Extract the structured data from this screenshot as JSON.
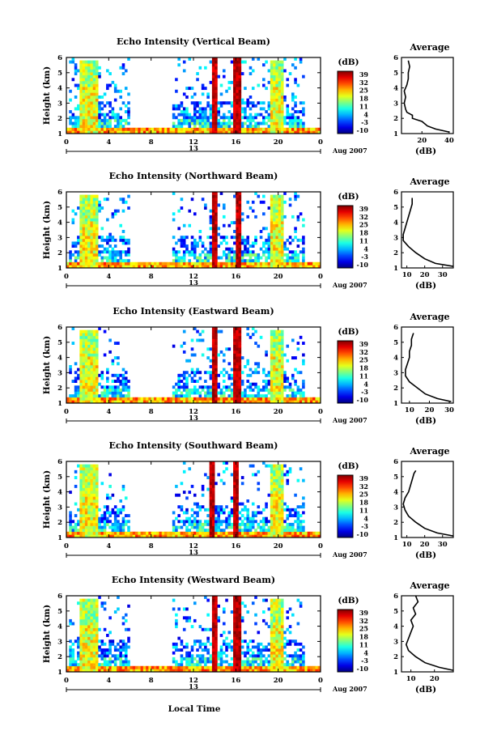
{
  "figure": {
    "bottom_xlabel": "Local Time",
    "cbar_unit": "(dB)",
    "cbar_ticks": [
      "39",
      "32",
      "25",
      "18",
      "11",
      "4",
      "-3",
      "-10"
    ],
    "cbar_min": -10,
    "cbar_max": 39,
    "time_ticks": [
      "0",
      "4",
      "8",
      "12",
      "16",
      "20",
      "0"
    ],
    "date_label": "13",
    "month_label": "Aug 2007",
    "ylabel": "Height (km)",
    "height_ticks": [
      "1",
      "2",
      "3",
      "4",
      "5",
      "6"
    ],
    "avg_title": "Average",
    "avg_xlabel": "(dB)"
  },
  "chart_data": [
    {
      "type": "heatmap",
      "title": "Echo Intensity (Vertical Beam)",
      "ylabel": "Height (km)",
      "xlim": [
        0,
        24
      ],
      "ylim": [
        1,
        6
      ],
      "rain_bands": [
        [
          1.3,
          3.0
        ],
        [
          13.7,
          14.2
        ],
        [
          15.8,
          16.4
        ],
        [
          19.3,
          20.5
        ]
      ],
      "average_profile": {
        "title": "Average",
        "xlabel": "(dB)",
        "xticks": [
          "20",
          "40"
        ],
        "xlim": [
          5,
          43
        ],
        "height": [
          1.1,
          1.3,
          1.5,
          1.8,
          2.0,
          2.2,
          2.4,
          2.6,
          3.0,
          3.4,
          3.8,
          4.2,
          4.6,
          5.0,
          5.4,
          5.8
        ],
        "db": [
          40,
          30,
          24,
          20,
          13,
          13,
          9,
          8,
          7,
          8,
          7,
          9,
          10,
          10,
          11,
          10
        ]
      }
    },
    {
      "type": "heatmap",
      "title": "Echo Intensity (Northward Beam)",
      "ylabel": "Height (km)",
      "xlim": [
        0,
        24
      ],
      "ylim": [
        1,
        6
      ],
      "rain_bands": [
        [
          1.3,
          3.0
        ],
        [
          13.8,
          14.3
        ],
        [
          16.0,
          16.4
        ],
        [
          19.3,
          20.5
        ]
      ],
      "average_profile": {
        "title": "Average",
        "xlabel": "(dB)",
        "xticks": [
          "10",
          "20",
          "30"
        ],
        "xlim": [
          7,
          36
        ],
        "height": [
          1.1,
          1.3,
          1.6,
          2.0,
          2.4,
          2.8,
          3.2,
          3.6,
          4.0,
          4.4,
          4.8,
          5.2,
          5.6
        ],
        "db": [
          36,
          26,
          20,
          15,
          11,
          8,
          8,
          9,
          10,
          11,
          12,
          13,
          13
        ]
      }
    },
    {
      "type": "heatmap",
      "title": "Echo Intensity (Eastward Beam)",
      "ylabel": "Height (km)",
      "xlim": [
        0,
        24
      ],
      "ylim": [
        1,
        6
      ],
      "rain_bands": [
        [
          1.3,
          3.0
        ],
        [
          13.7,
          14.2
        ],
        [
          15.8,
          16.4
        ],
        [
          19.3,
          20.5
        ]
      ],
      "average_profile": {
        "title": "Average",
        "xlabel": "(dB)",
        "xticks": [
          "10",
          "20",
          "30"
        ],
        "xlim": [
          6,
          32
        ],
        "height": [
          1.1,
          1.3,
          1.6,
          2.0,
          2.4,
          2.8,
          3.2,
          3.6,
          4.0,
          4.4,
          4.8,
          5.2,
          5.6
        ],
        "db": [
          31,
          24,
          18,
          14,
          10,
          8,
          8,
          9,
          10,
          10,
          11,
          11,
          12
        ]
      }
    },
    {
      "type": "heatmap",
      "title": "Echo Intensity (Southward Beam)",
      "ylabel": "Height (km)",
      "xlim": [
        0,
        24
      ],
      "ylim": [
        1,
        6
      ],
      "rain_bands": [
        [
          1.3,
          3.0
        ],
        [
          13.4,
          14.0
        ],
        [
          15.7,
          16.3
        ],
        [
          19.3,
          20.5
        ]
      ],
      "average_profile": {
        "title": "Average",
        "xlabel": "(dB)",
        "xticks": [
          "10",
          "20",
          "30"
        ],
        "xlim": [
          7,
          36
        ],
        "height": [
          1.1,
          1.3,
          1.6,
          2.0,
          2.4,
          2.8,
          3.2,
          3.6,
          4.0,
          4.4,
          4.8,
          5.2,
          5.4
        ],
        "db": [
          36,
          27,
          20,
          15,
          11,
          9,
          8,
          9,
          11,
          12,
          13,
          14,
          15
        ]
      }
    },
    {
      "type": "heatmap",
      "title": "Echo Intensity (Westward Beam)",
      "ylabel": "Height (km)",
      "xlim": [
        0,
        24
      ],
      "ylim": [
        1,
        6
      ],
      "rain_bands": [
        [
          1.3,
          3.0
        ],
        [
          13.7,
          14.2
        ],
        [
          15.8,
          16.4
        ],
        [
          19.3,
          20.5
        ]
      ],
      "average_profile": {
        "title": "Average",
        "xlabel": "(dB)",
        "xticks": [
          "10",
          "20"
        ],
        "xlim": [
          6,
          28
        ],
        "height": [
          1.1,
          1.3,
          1.6,
          2.0,
          2.4,
          2.8,
          3.2,
          3.6,
          4.0,
          4.4,
          4.8,
          5.2,
          5.6,
          6.0
        ],
        "db": [
          28,
          22,
          16,
          12,
          9,
          8,
          9,
          10,
          11,
          10,
          12,
          11,
          13,
          12
        ]
      }
    }
  ]
}
